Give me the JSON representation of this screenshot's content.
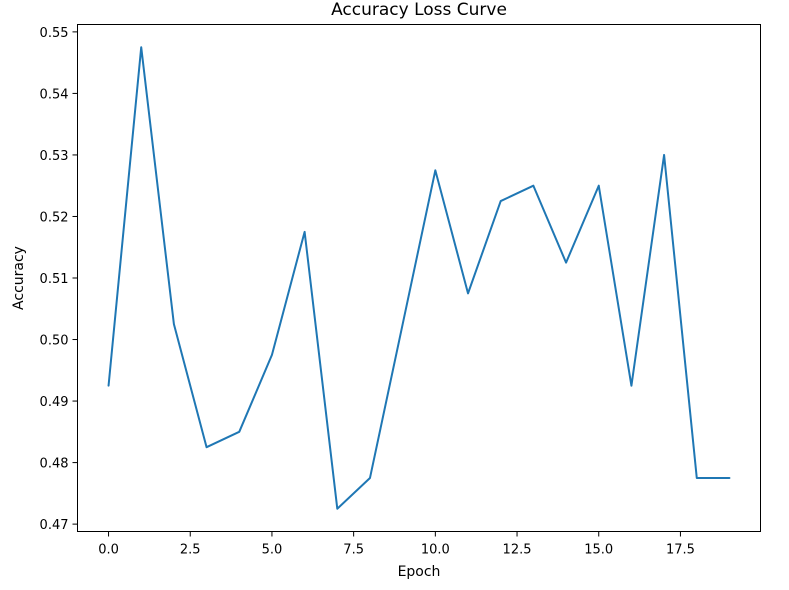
{
  "chart_data": {
    "type": "line",
    "title": "Accuracy Loss Curve",
    "xlabel": "Epoch",
    "ylabel": "Accuracy",
    "xlim": [
      -0.95,
      19.95
    ],
    "ylim": [
      0.4688,
      0.5512
    ],
    "xticks": [
      0.0,
      2.5,
      5.0,
      7.5,
      10.0,
      12.5,
      15.0,
      17.5
    ],
    "xtick_labels": [
      "0.0",
      "2.5",
      "5.0",
      "7.5",
      "10.0",
      "12.5",
      "15.0",
      "17.5"
    ],
    "yticks": [
      0.47,
      0.48,
      0.49,
      0.5,
      0.51,
      0.52,
      0.53,
      0.54,
      0.55
    ],
    "ytick_labels": [
      "0.47",
      "0.48",
      "0.49",
      "0.50",
      "0.51",
      "0.52",
      "0.53",
      "0.54",
      "0.55"
    ],
    "grid": false,
    "series": [
      {
        "color": "#1f77b4",
        "x": [
          0,
          1,
          2,
          3,
          4,
          5,
          6,
          7,
          8,
          9,
          10,
          11,
          12,
          13,
          14,
          15,
          16,
          17,
          18,
          19
        ],
        "values": [
          0.4925,
          0.5475,
          0.5025,
          0.4825,
          0.485,
          0.4975,
          0.5175,
          0.4725,
          0.4775,
          0.5025,
          0.5275,
          0.5075,
          0.5225,
          0.525,
          0.5125,
          0.525,
          0.4925,
          0.53,
          0.4775,
          0.4775
        ]
      }
    ]
  }
}
